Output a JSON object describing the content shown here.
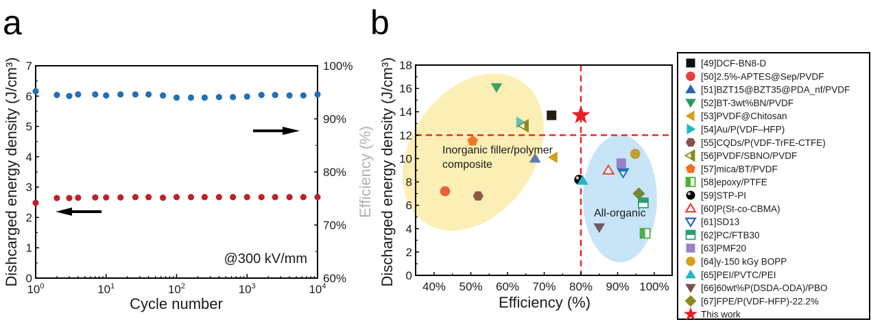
{
  "chart_data": [
    {
      "panel": "a",
      "type": "scatter",
      "xscale": "log",
      "xlabel": "Cycle number",
      "ylabel": "Dishcarged energy density (J/cm³)",
      "y2label": "Efficiency (%)",
      "xlim": [
        1,
        10000
      ],
      "ylim": [
        0,
        7
      ],
      "y2lim": [
        60,
        100
      ],
      "x_ticks": [
        {
          "base": "10",
          "exp": "0"
        },
        {
          "base": "10",
          "exp": "1"
        },
        {
          "base": "10",
          "exp": "2"
        },
        {
          "base": "10",
          "exp": "3"
        },
        {
          "base": "10",
          "exp": "4"
        }
      ],
      "y_ticks": [
        "0",
        "1",
        "2",
        "3",
        "4",
        "5",
        "6",
        "7"
      ],
      "y2_ticks": [
        "60%",
        "70%",
        "80%",
        "90%",
        "100%"
      ],
      "annotation": "@300 kV/mm",
      "x": [
        1,
        2,
        3,
        4,
        7,
        10,
        16,
        26,
        40,
        64,
        100,
        160,
        250,
        400,
        630,
        1000,
        1600,
        2500,
        4000,
        6300,
        10000
      ],
      "series": [
        {
          "name": "Discharged energy density",
          "axis": "left",
          "color": "#c0202a",
          "values": [
            2.48,
            2.64,
            2.64,
            2.65,
            2.66,
            2.66,
            2.66,
            2.67,
            2.67,
            2.65,
            2.67,
            2.67,
            2.67,
            2.67,
            2.67,
            2.67,
            2.67,
            2.67,
            2.67,
            2.67,
            2.67
          ]
        },
        {
          "name": "Efficiency",
          "axis": "right",
          "color": "#2470b3",
          "values": [
            95.2,
            94.5,
            94.3,
            94.6,
            94.6,
            94.4,
            94.6,
            94.6,
            94.6,
            94.4,
            94.0,
            94.0,
            94.0,
            94.1,
            94.1,
            94.2,
            94.5,
            94.5,
            94.4,
            94.4,
            94.6
          ]
        }
      ]
    },
    {
      "panel": "b",
      "type": "scatter",
      "xlabel": "Efficiency (%)",
      "ylabel": "Discharged energy density (J/cm³)",
      "ylabel_overlap": "Efficiency (%)",
      "xlim": [
        35,
        101.5
      ],
      "ylim": [
        0,
        18
      ],
      "x_ticks": [
        "40%",
        "50%",
        "60%",
        "70%",
        "80%",
        "90%",
        "100%"
      ],
      "y_ticks": [
        "0",
        "2",
        "4",
        "6",
        "8",
        "10",
        "12",
        "14",
        "16",
        "18"
      ],
      "reference_lines": {
        "x": 80,
        "y": 12,
        "color": "#e8202a"
      },
      "regions": [
        {
          "label_lines": [
            "Inorganic filler/polymer",
            "composite"
          ],
          "color": "#fbefb5"
        },
        {
          "label_lines": [
            "All-organic"
          ],
          "color": "#c8e5f7"
        }
      ],
      "points": [
        {
          "label": "[49]DCF-BN8-D",
          "x": 72,
          "y": 13.7,
          "marker": "square",
          "color": "#231f14"
        },
        {
          "label": "[50]2.5%-APTES@Sep/PVDF",
          "x": 43,
          "y": 7.2,
          "marker": "circle",
          "color": "#e8603a"
        },
        {
          "label": "[51]BZT15@BZT35@PDA_nf/PVDF",
          "x": 67.5,
          "y": 10.0,
          "marker": "triangle-up",
          "color": "#5b7bb0"
        },
        {
          "label": "[52]BT-3wt%BN/PVDF",
          "x": 57,
          "y": 16.1,
          "marker": "triangle-down",
          "color": "#3aa56a"
        },
        {
          "label": "[53]PVDF@Chitosan",
          "x": 72.5,
          "y": 10.1,
          "marker": "triangle-left",
          "color": "#d4a017"
        },
        {
          "label": "[54]Au/P(VDF–HFP)",
          "x": 63.5,
          "y": 13.1,
          "marker": "triangle-right",
          "color": "#5fc4b4"
        },
        {
          "label": "[55]CQDs/P(VDF-TrFE-CTFE)",
          "x": 52,
          "y": 6.8,
          "marker": "hexagon",
          "color": "#8a5a45"
        },
        {
          "label": "[56]PVDF/SBNO/PVDF",
          "x": 64.5,
          "y": 12.8,
          "marker": "triangle-left-half",
          "color": "#8a8a20"
        },
        {
          "label": "[57]mica/BT/PVDF",
          "x": 50.5,
          "y": 11.5,
          "marker": "pentagon",
          "color": "#f07820"
        },
        {
          "label": "[58]epoxy/PTFE",
          "x": 97.5,
          "y": 3.6,
          "marker": "square-half-right",
          "color": "#4ab04a"
        },
        {
          "label": "[59]STP-PI",
          "x": 79.5,
          "y": 8.2,
          "marker": "sphere",
          "color": "#000000"
        },
        {
          "label": "[60]P(St-co-CBMA)",
          "x": 87.5,
          "y": 9.0,
          "marker": "triangle-up-open",
          "color": "#e0504a"
        },
        {
          "label": "[61]SD13",
          "x": 91.5,
          "y": 8.8,
          "marker": "triangle-down-half",
          "color": "#2470c0"
        },
        {
          "label": "[62]PC/FTB30",
          "x": 97,
          "y": 6.2,
          "marker": "square-half-bottom",
          "color": "#2aa070"
        },
        {
          "label": "[63]PMF20",
          "x": 91,
          "y": 9.6,
          "marker": "square",
          "color": "#9a80c8"
        },
        {
          "label": "[64]γ-150 kGy BOPP",
          "x": 94.8,
          "y": 10.4,
          "marker": "circle",
          "color": "#c0a030"
        },
        {
          "label": "[65]PEI/PVTC/PEI",
          "x": 80.5,
          "y": 8.1,
          "marker": "triangle-up",
          "color": "#20b8c8"
        },
        {
          "label": "[66]60wt%P(DSDA-ODA)/PBO",
          "x": 85,
          "y": 4.1,
          "marker": "triangle-down",
          "color": "#6a5a60"
        },
        {
          "label": "[67]FPE/P(VDF-HFP)-22.2%",
          "x": 95.8,
          "y": 7.0,
          "marker": "diamond",
          "color": "#708a38"
        },
        {
          "label": "This work",
          "x": 80,
          "y": 13.7,
          "marker": "star",
          "color": "#e8202a"
        }
      ]
    }
  ],
  "panels": {
    "a": "a",
    "b": "b"
  },
  "legend": {
    "items": [
      {
        "label": "[49]DCF-BN8-D",
        "marker": "square",
        "color": "#111111"
      },
      {
        "label": "[50]2.5%-APTES@Sep/PVDF",
        "marker": "circle",
        "color": "#e8403a"
      },
      {
        "label": "[51]BZT15@BZT35@PDA_nf/PVDF",
        "marker": "triangle-up",
        "color": "#2a64b0"
      },
      {
        "label": "[52]BT-3wt%BN/PVDF",
        "marker": "triangle-down",
        "color": "#2a9a60"
      },
      {
        "label": "[53]PVDF@Chitosan",
        "marker": "triangle-left",
        "color": "#d4a017"
      },
      {
        "label": "[54]Au/P(VDF–HFP)",
        "marker": "triangle-right",
        "color": "#20b8c8"
      },
      {
        "label": "[55]CQDs/P(VDF-TrFE-CTFE)",
        "marker": "hexagon",
        "color": "#8a5050"
      },
      {
        "label": "[56]PVDF/SBNO/PVDF",
        "marker": "triangle-left-half",
        "color": "#8a8a20"
      },
      {
        "label": "[57]mica/BT/PVDF",
        "marker": "pentagon",
        "color": "#f07020"
      },
      {
        "label": "[58]epoxy/PTFE",
        "marker": "square-half-right",
        "color": "#4ab030"
      },
      {
        "label": "[59]STP-PI",
        "marker": "sphere",
        "color": "#000000"
      },
      {
        "label": "[60]P(St-co-CBMA)",
        "marker": "triangle-up-open",
        "color": "#e8403a"
      },
      {
        "label": "[61]SD13",
        "marker": "triangle-down-open",
        "color": "#2a64c0"
      },
      {
        "label": "[62]PC/FTB30",
        "marker": "square-half-bottom",
        "color": "#2aa070"
      },
      {
        "label": "[63]PMF20",
        "marker": "square",
        "color": "#9a80c8"
      },
      {
        "label": "[64]γ-150 kGy BOPP",
        "marker": "circle",
        "color": "#d4a017"
      },
      {
        "label": "[65]PEI/PVTC/PEI",
        "marker": "triangle-up",
        "color": "#20b8c8"
      },
      {
        "label": "[66]60wt%P(DSDA-ODA)/PBO",
        "marker": "triangle-down",
        "color": "#7a5050"
      },
      {
        "label": "[67]FPE/P(VDF-HFP)-22.2%",
        "marker": "diamond",
        "color": "#8a8a20"
      },
      {
        "label": "This work",
        "marker": "star",
        "color": "#e8202a"
      }
    ]
  }
}
